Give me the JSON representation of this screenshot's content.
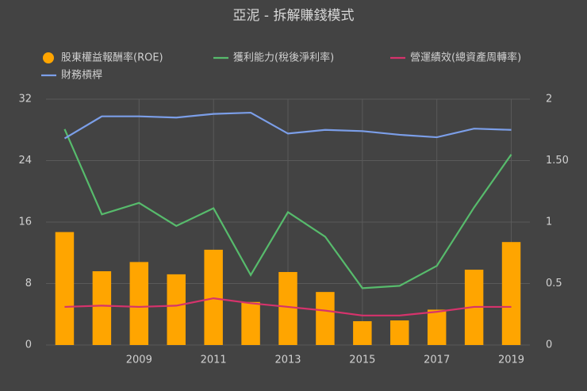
{
  "chart_data": {
    "type": "bar",
    "title": "亞泥 - 拆解賺錢模式",
    "categories": [
      null,
      null,
      "2009",
      null,
      "2011",
      null,
      "2013",
      null,
      "2015",
      null,
      "2017",
      null,
      "2019"
    ],
    "series": [
      {
        "name": "股東權益報酬率(ROE)",
        "type": "bar",
        "color": "#ffa500",
        "values": [
          14.7,
          9.6,
          10.8,
          9.2,
          12.4,
          5.6,
          9.5,
          6.9,
          3.1,
          3.2,
          4.6,
          9.8,
          13.4
        ]
      },
      {
        "name": "獲利能力(稅後淨利率)",
        "type": "line",
        "color": "#57bb6c",
        "values": [
          28.1,
          17.0,
          18.5,
          15.5,
          17.8,
          9.1,
          17.3,
          14.1,
          7.4,
          7.7,
          10.3,
          17.9,
          24.8
        ]
      },
      {
        "name": "營運績效(總資產周轉率)",
        "type": "line",
        "axis": "y2",
        "color": "#d6336c",
        "values": [
          0.31,
          0.32,
          0.31,
          0.32,
          0.38,
          0.34,
          0.31,
          0.28,
          0.24,
          0.24,
          0.27,
          0.31,
          0.31
        ]
      },
      {
        "name": "財務槓桿",
        "type": "line",
        "axis": "y2",
        "color": "#7b9ee8",
        "values": [
          1.68,
          1.86,
          1.86,
          1.85,
          1.88,
          1.89,
          1.72,
          1.75,
          1.74,
          1.71,
          1.69,
          1.76,
          1.75
        ]
      }
    ],
    "ylim": [
      0,
      32
    ],
    "yticks": [
      0,
      8,
      16,
      24,
      32
    ],
    "y2lim": [
      0,
      2
    ],
    "y2ticks": [
      0,
      0.5,
      1,
      {
        "value": 1.5,
        "label": "1.50"
      },
      2
    ],
    "grid": true
  }
}
